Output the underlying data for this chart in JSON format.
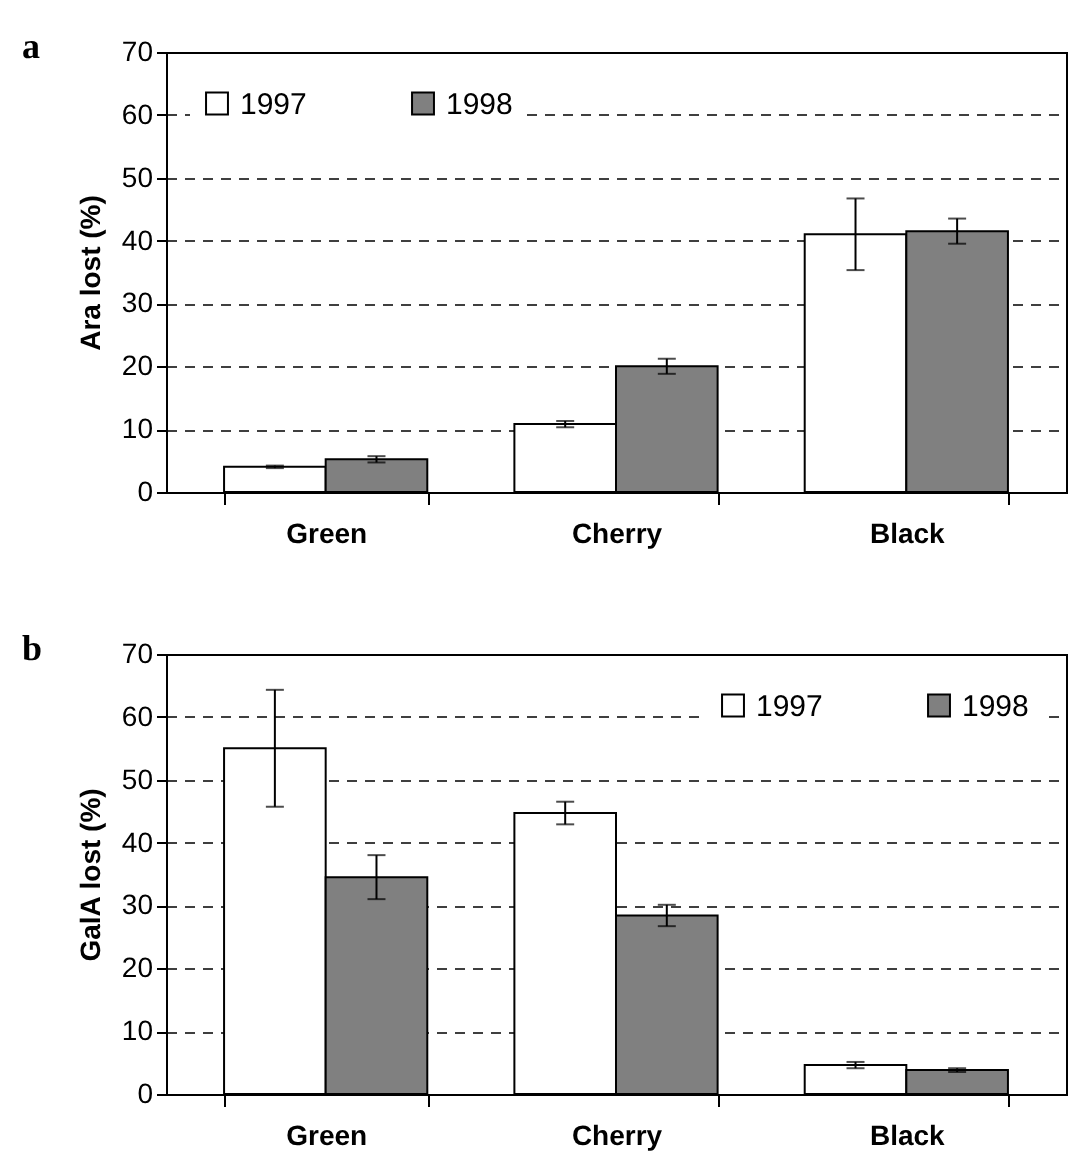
{
  "chart_data": [
    {
      "type": "bar",
      "title": "a",
      "ylabel": "Ara lost (%)",
      "categories": [
        "Green",
        "Cherry",
        "Black"
      ],
      "series": [
        {
          "name": "1997",
          "color": "#ffffff",
          "values": [
            4,
            10.8,
            41
          ],
          "errors": [
            0.2,
            0.5,
            5.7
          ]
        },
        {
          "name": "1998",
          "color": "#808080",
          "values": [
            5.2,
            20,
            41.5
          ],
          "errors": [
            0.5,
            1.2,
            2
          ]
        }
      ],
      "ylim": [
        0,
        70
      ],
      "yticks": [
        0,
        10,
        20,
        30,
        40,
        50,
        60,
        70
      ],
      "grid": "y",
      "legend": "top left"
    },
    {
      "type": "bar",
      "title": "b",
      "ylabel": "GalA lost (%)",
      "categories": [
        "Green",
        "Cherry",
        "Black"
      ],
      "series": [
        {
          "name": "1997",
          "color": "#ffffff",
          "values": [
            55,
            44.7,
            4.6
          ],
          "errors": [
            9.3,
            1.8,
            0.5
          ]
        },
        {
          "name": "1998",
          "color": "#808080",
          "values": [
            34.5,
            28.4,
            3.8
          ],
          "errors": [
            3.5,
            1.7,
            0.3
          ]
        }
      ],
      "ylim": [
        0,
        70
      ],
      "yticks": [
        0,
        10,
        20,
        30,
        40,
        50,
        60,
        70
      ],
      "grid": "y",
      "legend": "top right"
    }
  ]
}
